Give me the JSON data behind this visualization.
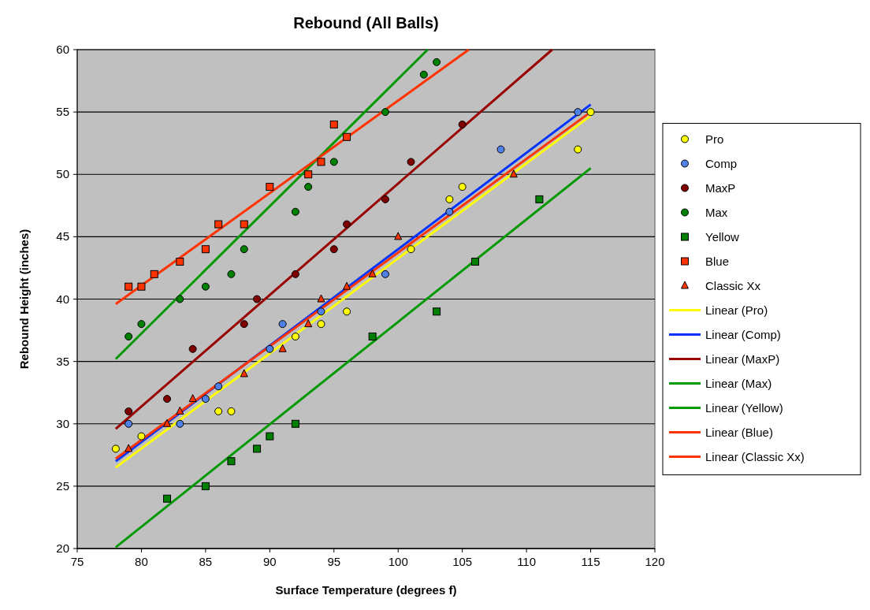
{
  "chart_data": {
    "type": "scatter",
    "title": "Rebound (All Balls)",
    "xlabel": "Surface Temperature (degrees f)",
    "ylabel": "Rebound Height (inches)",
    "xlim": [
      75,
      120
    ],
    "xticks": [
      75,
      80,
      85,
      90,
      95,
      100,
      105,
      110,
      115,
      120
    ],
    "ylim": [
      20,
      60
    ],
    "yticks": [
      20,
      25,
      30,
      35,
      40,
      45,
      50,
      55,
      60
    ],
    "grid": "y",
    "legend": "right",
    "series": [
      {
        "name": "Pro",
        "marker": "circle",
        "color": "#ffff00",
        "x": [
          78,
          80,
          86,
          87,
          92,
          94,
          96,
          101,
          104,
          105,
          114,
          115
        ],
        "values": [
          28,
          29,
          31,
          31,
          37,
          38,
          39,
          44,
          48,
          49,
          52,
          55
        ]
      },
      {
        "name": "Comp",
        "marker": "circle",
        "color": "#4f81e6",
        "x": [
          79,
          83,
          85,
          86,
          90,
          91,
          94,
          99,
          104,
          108,
          114
        ],
        "values": [
          30,
          30,
          32,
          33,
          36,
          38,
          39,
          42,
          47,
          52,
          55
        ]
      },
      {
        "name": "MaxP",
        "marker": "circle",
        "color": "#800000",
        "x": [
          79,
          82,
          84,
          88,
          89,
          92,
          95,
          96,
          99,
          101,
          105
        ],
        "values": [
          31,
          32,
          36,
          38,
          40,
          42,
          44,
          46,
          48,
          51,
          54
        ]
      },
      {
        "name": "Max",
        "marker": "circle",
        "color": "#008000",
        "x": [
          79,
          80,
          83,
          85,
          87,
          88,
          92,
          93,
          95,
          99,
          102,
          103
        ],
        "values": [
          37,
          38,
          40,
          41,
          42,
          44,
          47,
          49,
          51,
          55,
          58,
          59
        ]
      },
      {
        "name": "Yellow",
        "marker": "square",
        "color": "#008000",
        "x": [
          82,
          85,
          87,
          89,
          90,
          92,
          98,
          103,
          106,
          111
        ],
        "values": [
          24,
          25,
          27,
          28,
          29,
          30,
          37,
          39,
          43,
          48
        ]
      },
      {
        "name": "Blue",
        "marker": "square",
        "color": "#ff3300",
        "x": [
          79,
          80,
          81,
          83,
          85,
          86,
          88,
          90,
          93,
          94,
          95,
          96
        ],
        "values": [
          41,
          41,
          42,
          43,
          44,
          46,
          46,
          49,
          50,
          51,
          54,
          53
        ]
      },
      {
        "name": "Classic Xx",
        "marker": "triangle",
        "color": "#ff3300",
        "x": [
          79,
          82,
          83,
          84,
          88,
          91,
          93,
          94,
          96,
          98,
          100,
          109
        ],
        "values": [
          28,
          30,
          31,
          32,
          34,
          36,
          38,
          40,
          41,
          42,
          45,
          50
        ]
      },
      {
        "name": "Linear (Pro)",
        "type": "line",
        "marker": "none",
        "color": "#ffff00",
        "x": [
          78,
          115
        ],
        "values": [
          26.5,
          54.7
        ]
      },
      {
        "name": "Linear (Comp)",
        "type": "line",
        "marker": "none",
        "color": "#0033ff",
        "x": [
          78,
          115
        ],
        "values": [
          27.0,
          55.6
        ]
      },
      {
        "name": "Linear (MaxP)",
        "type": "line",
        "marker": "none",
        "color": "#990000",
        "x": [
          78,
          112
        ],
        "values": [
          29.6,
          60
        ]
      },
      {
        "name": "Linear (Max)",
        "type": "line",
        "marker": "none",
        "color": "#009900",
        "x": [
          78,
          102.3
        ],
        "values": [
          35.2,
          60
        ]
      },
      {
        "name": "Linear (Yellow)",
        "type": "line",
        "marker": "none",
        "color": "#009900",
        "x": [
          78,
          115
        ],
        "values": [
          20.1,
          50.5
        ]
      },
      {
        "name": "Linear (Blue)",
        "type": "line",
        "marker": "none",
        "color": "#ff3300",
        "x": [
          78,
          105.5
        ],
        "values": [
          39.6,
          60
        ]
      },
      {
        "name": "Linear (Classic Xx)",
        "type": "line",
        "marker": "none",
        "color": "#ff3300",
        "x": [
          78,
          115
        ],
        "values": [
          27.2,
          55.0
        ]
      }
    ]
  }
}
